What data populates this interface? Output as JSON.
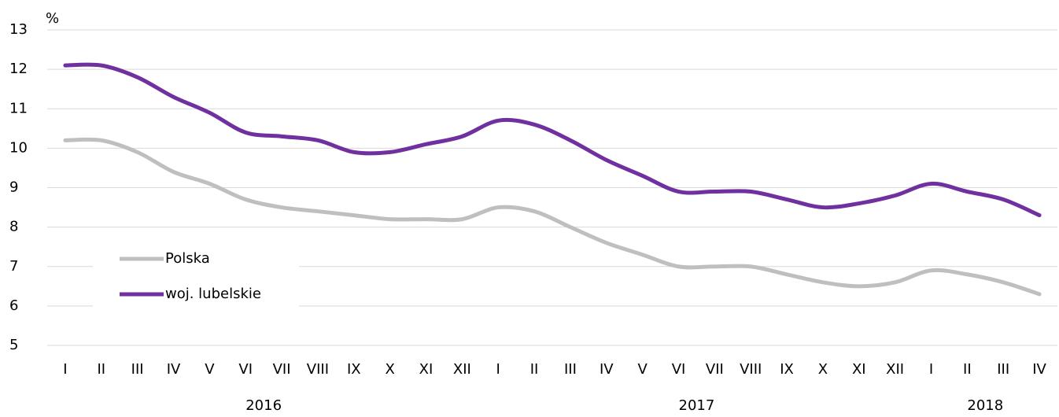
{
  "chart_data": {
    "type": "line",
    "y_unit": "%",
    "categories": [
      "I",
      "II",
      "III",
      "IV",
      "V",
      "VI",
      "VII",
      "VIII",
      "IX",
      "X",
      "XI",
      "XII",
      "I",
      "II",
      "III",
      "IV",
      "V",
      "VI",
      "VII",
      "VIII",
      "IX",
      "X",
      "XI",
      "XII",
      "I",
      "II",
      "III",
      "IV"
    ],
    "groups": [
      {
        "name": "2016",
        "count": 12
      },
      {
        "name": "2017",
        "count": 12
      },
      {
        "name": "2018",
        "count": 4
      }
    ],
    "series": [
      {
        "name": "Polska",
        "color": "#bfbfbf",
        "values": [
          10.2,
          10.2,
          9.9,
          9.4,
          9.1,
          8.7,
          8.5,
          8.4,
          8.3,
          8.2,
          8.2,
          8.2,
          8.5,
          8.4,
          8.0,
          7.6,
          7.3,
          7.0,
          7.0,
          7.0,
          6.8,
          6.6,
          6.5,
          6.6,
          6.9,
          6.8,
          6.6,
          6.3
        ]
      },
      {
        "name": "woj. lubelskie",
        "color": "#7030a0",
        "values": [
          12.1,
          12.1,
          11.8,
          11.3,
          10.9,
          10.4,
          10.3,
          10.2,
          9.9,
          9.9,
          10.1,
          10.3,
          10.7,
          10.6,
          10.2,
          9.7,
          9.3,
          8.9,
          8.9,
          8.9,
          8.7,
          8.5,
          8.6,
          8.8,
          9.1,
          8.9,
          8.7,
          8.3
        ]
      }
    ],
    "ylim": [
      5,
      13
    ],
    "yticks": [
      5,
      6,
      7,
      8,
      9,
      10,
      11,
      12,
      13
    ],
    "grid": true,
    "legend": "lower left"
  }
}
